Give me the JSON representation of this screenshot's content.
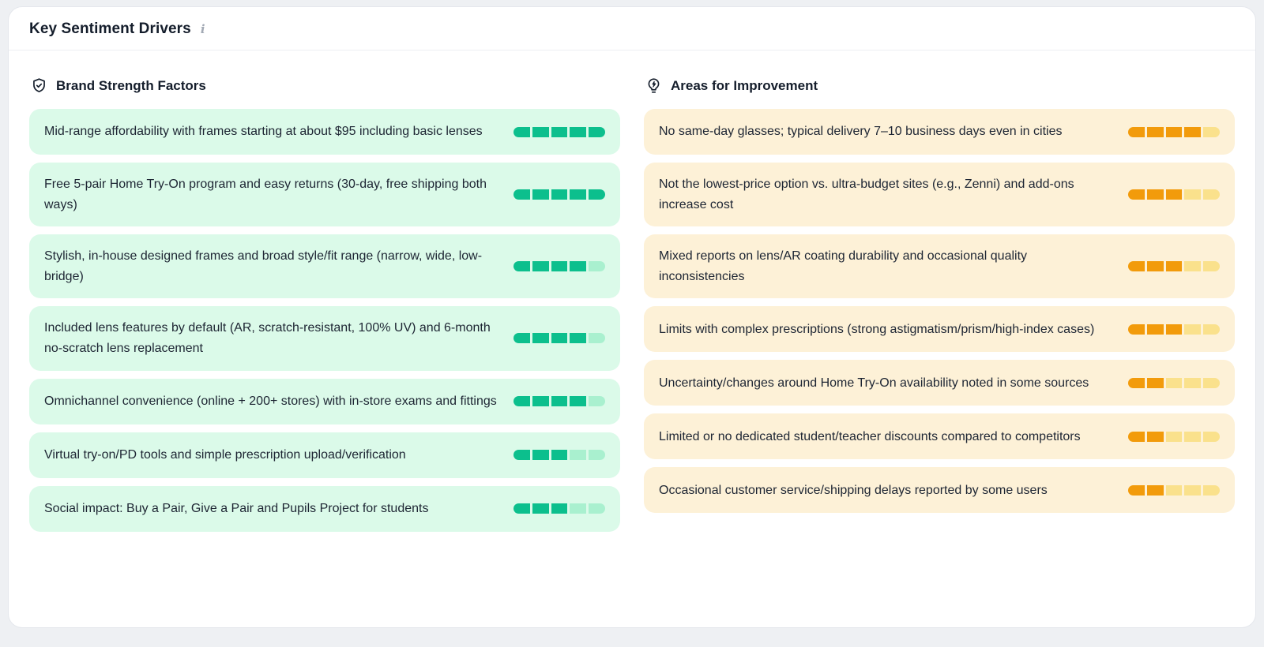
{
  "panel": {
    "title": "Key Sentiment Drivers",
    "info_icon": "i"
  },
  "colors": {
    "page_bg": "#eef0f3",
    "panel_bg": "#ffffff",
    "green_card": "#dbfae9",
    "green_filled": "#0cbf8d",
    "green_empty": "#a9f0cf",
    "amber_card": "#fdf1d7",
    "amber_filled": "#f29b0b",
    "amber_empty": "#fae18c",
    "text": "#1d2533"
  },
  "columns": {
    "strengths": {
      "header": "Brand Strength Factors",
      "icon": "shield-check-icon",
      "items": [
        {
          "text": "Mid-range affordability with frames starting at about $95 including basic lenses",
          "score": 5,
          "max": 5
        },
        {
          "text": "Free 5-pair Home Try-On program and easy returns (30-day, free shipping both ways)",
          "score": 5,
          "max": 5
        },
        {
          "text": "Stylish, in-house designed frames and broad style/fit range (narrow, wide, low-bridge)",
          "score": 4,
          "max": 5
        },
        {
          "text": "Included lens features by default (AR, scratch-resistant, 100% UV) and 6-month no-scratch lens replacement",
          "score": 4,
          "max": 5
        },
        {
          "text": "Omnichannel convenience (online + 200+ stores) with in-store exams and fittings",
          "score": 4,
          "max": 5
        },
        {
          "text": "Virtual try-on/PD tools and simple prescription upload/verification",
          "score": 3,
          "max": 5
        },
        {
          "text": "Social impact: Buy a Pair, Give a Pair and Pupils Project for students",
          "score": 3,
          "max": 5
        }
      ]
    },
    "improvements": {
      "header": "Areas for Improvement",
      "icon": "lightbulb-bolt-icon",
      "items": [
        {
          "text": "No same-day glasses; typical delivery 7–10 business days even in cities",
          "score": 4,
          "max": 5
        },
        {
          "text": "Not the lowest-price option vs. ultra-budget sites (e.g., Zenni) and add-ons increase cost",
          "score": 3,
          "max": 5
        },
        {
          "text": "Mixed reports on lens/AR coating durability and occasional quality inconsistencies",
          "score": 3,
          "max": 5
        },
        {
          "text": "Limits with complex prescriptions (strong astigmatism/prism/high-index cases)",
          "score": 3,
          "max": 5
        },
        {
          "text": "Uncertainty/changes around Home Try-On availability noted in some sources",
          "score": 2,
          "max": 5
        },
        {
          "text": "Limited or no dedicated student/teacher discounts compared to competitors",
          "score": 2,
          "max": 5
        },
        {
          "text": "Occasional customer service/shipping delays reported by some users",
          "score": 2,
          "max": 5
        }
      ]
    }
  }
}
